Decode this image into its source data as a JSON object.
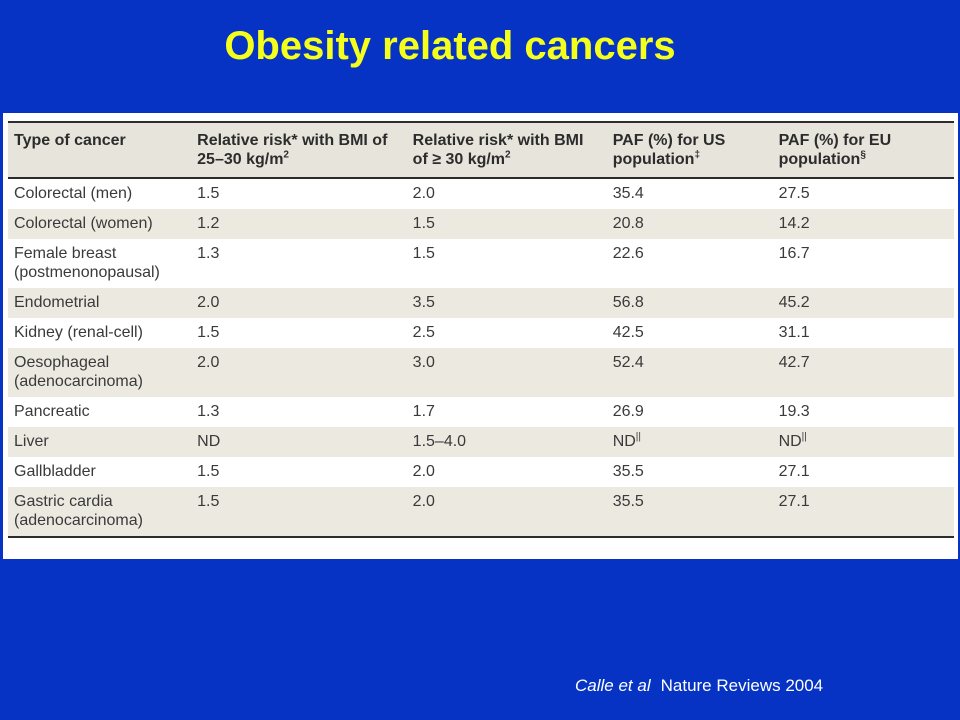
{
  "title": "Obesity related cancers",
  "table": {
    "headers": [
      {
        "text": "Type of cancer",
        "sup": ""
      },
      {
        "text": "Relative risk* with BMI of 25–30 kg/m",
        "sup": "2"
      },
      {
        "text": "Relative risk* with BMI of ≥ 30 kg/m",
        "sup": "2"
      },
      {
        "text": "PAF (%) for US population",
        "sup": "‡"
      },
      {
        "text": "PAF (%) for EU population",
        "sup": "§"
      }
    ],
    "rows": [
      {
        "cells": [
          {
            "text": "Colorectal (men)",
            "sup": ""
          },
          {
            "text": "1.5",
            "sup": ""
          },
          {
            "text": "2.0",
            "sup": ""
          },
          {
            "text": "35.4",
            "sup": ""
          },
          {
            "text": "27.5",
            "sup": ""
          }
        ]
      },
      {
        "cells": [
          {
            "text": "Colorectal (women)",
            "sup": ""
          },
          {
            "text": "1.2",
            "sup": ""
          },
          {
            "text": "1.5",
            "sup": ""
          },
          {
            "text": "20.8",
            "sup": ""
          },
          {
            "text": "14.2",
            "sup": ""
          }
        ]
      },
      {
        "cells": [
          {
            "text": "Female breast (postmenonopausal)",
            "sup": ""
          },
          {
            "text": "1.3",
            "sup": ""
          },
          {
            "text": "1.5",
            "sup": ""
          },
          {
            "text": "22.6",
            "sup": ""
          },
          {
            "text": "16.7",
            "sup": ""
          }
        ]
      },
      {
        "cells": [
          {
            "text": "Endometrial",
            "sup": ""
          },
          {
            "text": "2.0",
            "sup": ""
          },
          {
            "text": "3.5",
            "sup": ""
          },
          {
            "text": "56.8",
            "sup": ""
          },
          {
            "text": "45.2",
            "sup": ""
          }
        ]
      },
      {
        "cells": [
          {
            "text": "Kidney (renal-cell)",
            "sup": ""
          },
          {
            "text": "1.5",
            "sup": ""
          },
          {
            "text": "2.5",
            "sup": ""
          },
          {
            "text": "42.5",
            "sup": ""
          },
          {
            "text": "31.1",
            "sup": ""
          }
        ]
      },
      {
        "cells": [
          {
            "text": "Oesophageal (adenocarcinoma)",
            "sup": ""
          },
          {
            "text": "2.0",
            "sup": ""
          },
          {
            "text": "3.0",
            "sup": ""
          },
          {
            "text": "52.4",
            "sup": ""
          },
          {
            "text": "42.7",
            "sup": ""
          }
        ]
      },
      {
        "cells": [
          {
            "text": "Pancreatic",
            "sup": ""
          },
          {
            "text": "1.3",
            "sup": ""
          },
          {
            "text": "1.7",
            "sup": ""
          },
          {
            "text": "26.9",
            "sup": ""
          },
          {
            "text": "19.3",
            "sup": ""
          }
        ]
      },
      {
        "cells": [
          {
            "text": "Liver",
            "sup": ""
          },
          {
            "text": "ND",
            "sup": ""
          },
          {
            "text": "1.5–4.0",
            "sup": ""
          },
          {
            "text": "ND",
            "sup": "||"
          },
          {
            "text": "ND",
            "sup": "||"
          }
        ]
      },
      {
        "cells": [
          {
            "text": "Gallbladder",
            "sup": ""
          },
          {
            "text": "1.5",
            "sup": ""
          },
          {
            "text": "2.0",
            "sup": ""
          },
          {
            "text": "35.5",
            "sup": ""
          },
          {
            "text": "27.1",
            "sup": ""
          }
        ]
      },
      {
        "cells": [
          {
            "text": "Gastric cardia (adenocarcinoma)",
            "sup": ""
          },
          {
            "text": "1.5",
            "sup": ""
          },
          {
            "text": "2.0",
            "sup": ""
          },
          {
            "text": "35.5",
            "sup": ""
          },
          {
            "text": "27.1",
            "sup": ""
          }
        ]
      }
    ]
  },
  "citation": {
    "authors": "Calle et al",
    "source": "Nature Reviews 2004"
  },
  "colors": {
    "background": "#0633c4",
    "title": "#f5ff1c",
    "header_bg": "#e7e4dc",
    "stripe_bg": "#ece9e1"
  }
}
